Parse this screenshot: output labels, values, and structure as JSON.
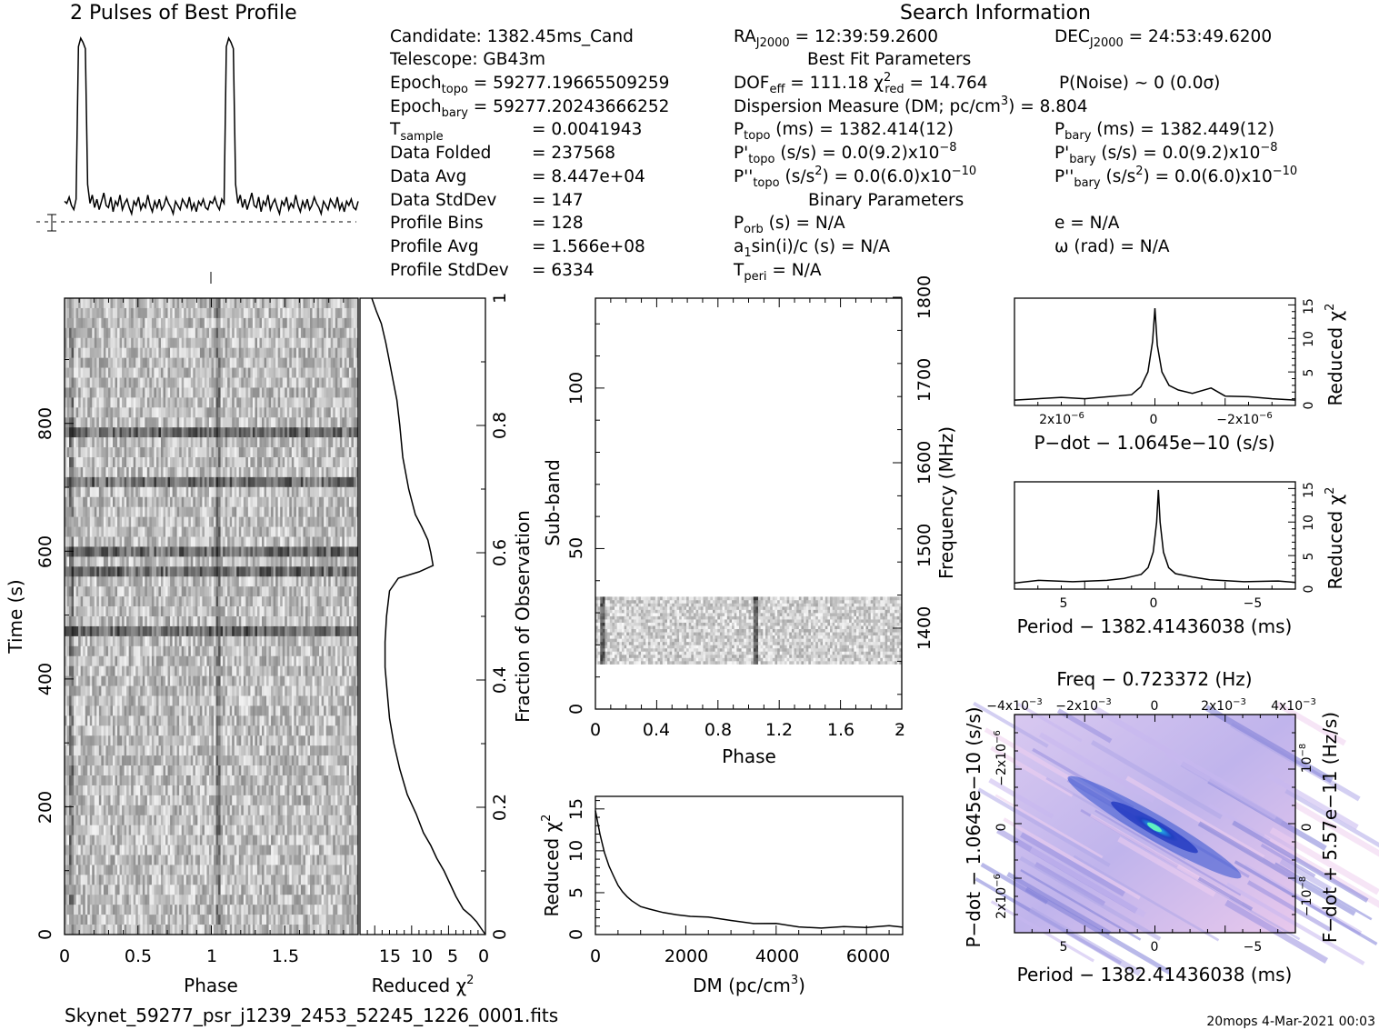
{
  "header": {
    "profile_title": "2 Pulses of Best Profile",
    "search_title": "Search Information"
  },
  "info_col1": [
    "Candidate:  1382.45ms_Cand",
    "Telescope:  GB43m",
    "Epoch_topo = 59277.19665509259",
    "Epoch_bary = 59277.20243666252",
    "T_sample  =  0.0041943",
    "Data Folded  =  237568",
    "Data Avg  =  8.447e+04",
    "Data StdDev  =  147",
    "Profile Bins  =  128",
    "Profile Avg  =  1.566e+08",
    "Profile StdDev  =  6334"
  ],
  "info_col2": {
    "ra": "RA_J2000 = 12:39:59.2600",
    "best_fit_title": "Best Fit Parameters",
    "dof": "DOF_eff = 111.18  χ²_red = 14.764",
    "dm": "Dispersion Measure (DM; pc/cm³) = 8.804",
    "p_topo": "P_topo (ms) =  1382.414(12)",
    "pd_topo": "P'_topo (s/s) = 0.0(9.2)x10⁻⁸",
    "pdd_topo": "P''_topo (s/s²) = 0.0(6.0)x10⁻¹⁰",
    "binary_title": "Binary Parameters",
    "porb": "P_orb (s) = N/A",
    "a1sini": "a₁sin(i)/c (s) = N/A",
    "tperi": "T_peri = N/A"
  },
  "info_col3": {
    "dec": "DEC_J2000 = 24:53:49.6200",
    "pnoise": "P(Noise) ~ 0   (0.0σ)",
    "p_bary": "P_bary (ms) =  1382.449(12)",
    "pd_bary": "P'_bary (s/s) = 0.0(9.2)x10⁻⁸",
    "pdd_bary": "P''_bary (s/s²) = 0.0(6.0)x10⁻¹⁰",
    "ecc": "e = N/A",
    "omega": "ω (rad) = N/A"
  },
  "footer": {
    "filename": "Skynet_59277_psr_j1239_2453_52245_1226_0001.fits",
    "stamp": "20mops  4-Mar-2021 00:03"
  },
  "colors": {
    "ink": "#000000",
    "ppdot_low": "#f0d8f0",
    "ppdot_mid": "#3048d8",
    "ppdot_peak": "#40f0d0"
  },
  "chart_data": [
    {
      "id": "profile",
      "type": "line",
      "title": "2 Pulses of Best Profile",
      "x_range": [
        0,
        2
      ],
      "y_range": [
        0,
        1
      ],
      "pulse_phases": [
        0.04,
        1.04
      ],
      "y": [
        0.22,
        0.21,
        0.24,
        0.2,
        0.18,
        0.23,
        0.96,
        1.0,
        0.98,
        0.95,
        0.3,
        0.21,
        0.25,
        0.19,
        0.23,
        0.18,
        0.22,
        0.26,
        0.2,
        0.19,
        0.24,
        0.17,
        0.22,
        0.2,
        0.25,
        0.18,
        0.21,
        0.23,
        0.19,
        0.16,
        0.22,
        0.2,
        0.24,
        0.18,
        0.21,
        0.19,
        0.25,
        0.2,
        0.17,
        0.22,
        0.19,
        0.23,
        0.18,
        0.2,
        0.24,
        0.21,
        0.19,
        0.16,
        0.22,
        0.2,
        0.18,
        0.23,
        0.21,
        0.19,
        0.24,
        0.18,
        0.21,
        0.17,
        0.22,
        0.2,
        0.23,
        0.19,
        0.18,
        0.22,
        0.21,
        0.24,
        0.2,
        0.18,
        0.23,
        0.21,
        0.96,
        1.0,
        0.98,
        0.95,
        0.3,
        0.21,
        0.25,
        0.19,
        0.23,
        0.18,
        0.22,
        0.26,
        0.2,
        0.19,
        0.24,
        0.17,
        0.22,
        0.2,
        0.25,
        0.18,
        0.21,
        0.23,
        0.19,
        0.16,
        0.22,
        0.2,
        0.24,
        0.18,
        0.21,
        0.19,
        0.25,
        0.2,
        0.17,
        0.22,
        0.19,
        0.23,
        0.18,
        0.2,
        0.24,
        0.21,
        0.19,
        0.16,
        0.22,
        0.2,
        0.18,
        0.23,
        0.21,
        0.19,
        0.24,
        0.18,
        0.21,
        0.17,
        0.22,
        0.2,
        0.23,
        0.19,
        0.18,
        0.22
      ]
    },
    {
      "id": "time_phase",
      "type": "heatmap",
      "xlabel": "Phase",
      "ylabel": "Time (s)",
      "x_range": [
        0,
        2
      ],
      "y_range": [
        0,
        996
      ],
      "x_ticks": [
        "0",
        "0.5",
        "1",
        "1.5"
      ],
      "y_ticks": [
        "0",
        "200",
        "400",
        "600",
        "800"
      ],
      "pulse_phases": [
        0.04,
        1.04
      ],
      "dark_rows_time": [
        570,
        600,
        780,
        710,
        480
      ]
    },
    {
      "id": "time_chi2",
      "type": "line",
      "xlabel": "Reduced χ²",
      "ylabel": "Fraction of Observation",
      "x_ticks": [
        "15",
        "10",
        "5",
        "0"
      ],
      "x_range": [
        17,
        0
      ],
      "y_ticks": [
        "0",
        "0.2",
        "0.4",
        "0.6",
        "0.8",
        "1"
      ],
      "y_range": [
        0,
        1
      ],
      "x": [
        0.0,
        0.6,
        1.2,
        2.0,
        3.0,
        4.0,
        4.8,
        5.6,
        6.6,
        7.4,
        8.4,
        9.4,
        10.6,
        11.6,
        12.4,
        13.0,
        13.3,
        13.6,
        13.6,
        13.4,
        13.0,
        11.8,
        9.0,
        7.1,
        7.4,
        7.8,
        8.6,
        9.5,
        10.4,
        11.2,
        11.6,
        12.0,
        12.5,
        13.0,
        13.5,
        14.1,
        14.8,
        15.4
      ],
      "y": [
        0.0,
        0.01,
        0.02,
        0.03,
        0.04,
        0.06,
        0.08,
        0.1,
        0.12,
        0.14,
        0.16,
        0.19,
        0.22,
        0.26,
        0.3,
        0.34,
        0.38,
        0.42,
        0.46,
        0.5,
        0.54,
        0.56,
        0.57,
        0.58,
        0.6,
        0.62,
        0.64,
        0.66,
        0.7,
        0.75,
        0.8,
        0.84,
        0.87,
        0.9,
        0.93,
        0.96,
        0.98,
        1.0
      ]
    },
    {
      "id": "subband_phase",
      "type": "heatmap",
      "xlabel": "Phase",
      "ylabel": "Sub-band",
      "y2label": "Frequency (MHz)",
      "x_ticks": [
        "0",
        "0.4",
        "0.8",
        "1.2",
        "1.6",
        "2"
      ],
      "x_range": [
        0,
        2
      ],
      "y_ticks": [
        "0",
        "50",
        "100"
      ],
      "y_range": [
        0,
        128
      ],
      "y2_ticks": [
        "1400",
        "1500",
        "1600",
        "1700",
        "1800"
      ],
      "active_subbands": [
        14,
        35
      ],
      "pulse_phases": [
        0.04,
        1.04
      ]
    },
    {
      "id": "dm_chi2",
      "type": "line",
      "xlabel": "DM (pc/cm³)",
      "ylabel": "Reduced χ²",
      "x_ticks": [
        "0",
        "2000",
        "4000",
        "6000"
      ],
      "x_range": [
        0,
        6800
      ],
      "y_ticks": [
        "0",
        "5",
        "10",
        "15"
      ],
      "y_range": [
        0,
        16.5
      ],
      "x": [
        0,
        100,
        200,
        300,
        400,
        500,
        600,
        700,
        800,
        1000,
        1200,
        1500,
        1800,
        2100,
        2500,
        3000,
        3500,
        4000,
        4500,
        5000,
        5500,
        6000,
        6500,
        6800
      ],
      "y": [
        14.8,
        12.0,
        9.8,
        8.2,
        7.0,
        6.0,
        5.2,
        4.5,
        4.0,
        3.4,
        3.0,
        2.7,
        2.4,
        2.2,
        2.0,
        1.7,
        1.4,
        1.2,
        1.0,
        0.9,
        0.9,
        0.9,
        1.0,
        1.0
      ]
    },
    {
      "id": "pdot_chi2",
      "type": "line",
      "xlabel": "P-dot − 1.0645e-10 (s/s)",
      "ylabel": "Reduced χ²",
      "x_ticks": [
        "2x10⁻⁶",
        "0",
        "−2x10⁻⁶"
      ],
      "x_range": [
        3.0,
        -3.0
      ],
      "y_ticks": [
        "0",
        "5",
        "10",
        "15"
      ],
      "y_range": [
        0,
        16
      ],
      "x": [
        3.0,
        2.5,
        2.0,
        1.5,
        1.0,
        0.5,
        0.3,
        0.15,
        0.05,
        0.0,
        -0.05,
        -0.15,
        -0.3,
        -0.5,
        -0.8,
        -1.2,
        -1.5,
        -2.0,
        -2.5,
        -3.0
      ],
      "y": [
        0.8,
        1.0,
        1.2,
        1.0,
        1.3,
        1.6,
        2.8,
        5.0,
        9.5,
        14.5,
        9.0,
        5.0,
        3.0,
        2.3,
        1.8,
        2.6,
        1.4,
        1.3,
        1.0,
        0.8
      ]
    },
    {
      "id": "period_chi2",
      "type": "line",
      "xlabel": "Period − 1382.41436038 (ms)",
      "ylabel": "Reduced χ²",
      "x_ticks": [
        "5",
        "0",
        "−5"
      ],
      "x_range": [
        8.4,
        -8.0
      ],
      "y_ticks": [
        "0",
        "5",
        "10",
        "15"
      ],
      "y_range": [
        0,
        16
      ],
      "x": [
        8.4,
        7.0,
        5.0,
        3.0,
        2.0,
        1.0,
        0.6,
        0.3,
        0.1,
        0.0,
        -0.1,
        -0.3,
        -0.6,
        -1.0,
        -2.0,
        -3.0,
        -5.0,
        -7.0,
        -8.0
      ],
      "y": [
        0.9,
        1.3,
        1.1,
        1.3,
        1.6,
        2.2,
        3.2,
        5.5,
        10.0,
        14.8,
        10.0,
        5.5,
        3.2,
        2.3,
        1.8,
        1.4,
        1.1,
        1.2,
        1.0
      ]
    },
    {
      "id": "p_pdot",
      "type": "heatmap",
      "title": "Freq − 0.723372 (Hz)",
      "xlabel": "Period − 1382.41436038 (ms)",
      "ylabel": "P-dot − 1.0645e-10 (s/s)",
      "y2label": "F-dot + 5.57e-11 (Hz/s)",
      "x_ticks": [
        "5",
        "0",
        "−5"
      ],
      "x_range": [
        8.4,
        -8.0
      ],
      "top_ticks": [
        "−4x10⁻³",
        "−2x10⁻³",
        "0",
        "2x10⁻³",
        "4x10⁻³"
      ],
      "y_ticks": [
        "−2x10⁻⁶",
        "0",
        "2x10⁻⁶"
      ],
      "y2_ticks": [
        "10⁻⁸",
        "0",
        "−10⁻⁸"
      ],
      "peak": [
        0.0,
        0.0
      ]
    }
  ]
}
